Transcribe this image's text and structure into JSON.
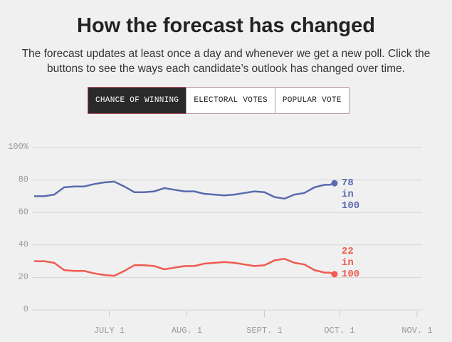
{
  "chart_data": {
    "type": "line",
    "title": "How the forecast has changed",
    "subtitle": "The forecast updates at least once a day and whenever we get a new poll. Click the buttons to see the ways each candidate’s outlook has changed over time.",
    "x": [
      "06-01",
      "06-05",
      "06-09",
      "06-13",
      "06-17",
      "06-21",
      "06-25",
      "06-29",
      "07-03",
      "07-07",
      "07-11",
      "07-15",
      "07-19",
      "07-23",
      "07-27",
      "07-31",
      "08-04",
      "08-08",
      "08-12",
      "08-16",
      "08-20",
      "08-24",
      "08-28",
      "09-01",
      "09-05",
      "09-09",
      "09-13",
      "09-17",
      "09-21",
      "09-25",
      "09-27",
      "09-29"
    ],
    "series": [
      {
        "color": "#5a6baf",
        "end_label": "78 in 100",
        "values": [
          70,
          70,
          71,
          75.5,
          76,
          76,
          77.5,
          78.5,
          79,
          76,
          72.5,
          72.5,
          73,
          75,
          74,
          73,
          73,
          71.5,
          71,
          70.5,
          71,
          72,
          73,
          72.5,
          69.5,
          68.5,
          71,
          72,
          75.5,
          77,
          77,
          78
        ]
      },
      {
        "color": "#ef5b4f",
        "end_label": "22 in 100",
        "values": [
          30,
          30,
          29,
          24.5,
          24,
          24,
          22.5,
          21.5,
          21,
          24,
          27.5,
          27.5,
          27,
          25,
          26,
          27,
          27,
          28.5,
          29,
          29.5,
          29,
          28,
          27,
          27.5,
          30.5,
          31.5,
          29,
          28,
          24.5,
          23,
          23,
          22
        ]
      }
    ],
    "xlim": [
      "06-01",
      "11-03"
    ],
    "xticks": [
      {
        "value": "07-01",
        "label": "JULY 1"
      },
      {
        "value": "08-01",
        "label": "AUG. 1"
      },
      {
        "value": "09-01",
        "label": "SEPT. 1"
      },
      {
        "value": "10-01",
        "label": "OCT. 1"
      },
      {
        "value": "11-01",
        "label": "NOV. 1"
      }
    ],
    "ylim": [
      0,
      100
    ],
    "yticks": [
      0,
      20,
      40,
      60,
      80,
      {
        "value": 100,
        "label": "100%"
      }
    ],
    "grid": true
  },
  "controls": {
    "buttons": [
      "CHANCE OF WINNING",
      "ELECTORAL VOTES",
      "POPULAR VOTE"
    ],
    "active": 0
  }
}
